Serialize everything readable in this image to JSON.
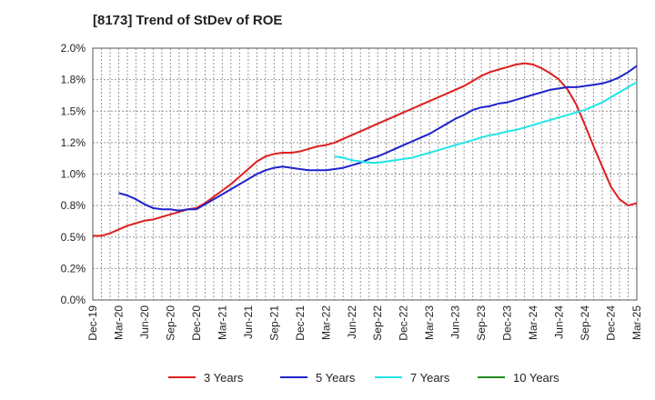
{
  "chart_data": {
    "type": "line",
    "title": "[8173]  Trend of StDev of ROE",
    "xlabel": "",
    "ylabel": "",
    "y_ticks": [
      "0.0%",
      "0.2%",
      "0.5%",
      "0.8%",
      "1.0%",
      "1.2%",
      "1.5%",
      "1.8%",
      "2.0%"
    ],
    "ylim": [
      0,
      2.0
    ],
    "x_ticks": [
      "Dec-19",
      "Mar-20",
      "Jun-20",
      "Sep-20",
      "Dec-20",
      "Mar-21",
      "Jun-21",
      "Sep-21",
      "Dec-21",
      "Mar-22",
      "Jun-22",
      "Sep-22",
      "Dec-22",
      "Mar-23",
      "Jun-23",
      "Sep-23",
      "Dec-23",
      "Mar-24",
      "Jun-24",
      "Sep-24",
      "Dec-24",
      "Mar-25"
    ],
    "grid": true,
    "legend_position": "bottom",
    "series": [
      {
        "name": "3 Years",
        "color": "#dd1f1f",
        "values": [
          0.51,
          0.51,
          0.53,
          0.56,
          0.59,
          0.61,
          0.63,
          0.64,
          0.66,
          0.68,
          0.7,
          0.72,
          0.73,
          0.77,
          0.82,
          0.87,
          0.92,
          0.98,
          1.04,
          1.1,
          1.14,
          1.16,
          1.17,
          1.17,
          1.18,
          1.2,
          1.22,
          1.23,
          1.25,
          1.28,
          1.31,
          1.34,
          1.37,
          1.4,
          1.43,
          1.46,
          1.49,
          1.52,
          1.55,
          1.58,
          1.61,
          1.64,
          1.67,
          1.7,
          1.74,
          1.78,
          1.81,
          1.83,
          1.85,
          1.87,
          1.88,
          1.87,
          1.84,
          1.8,
          1.75,
          1.67,
          1.55,
          1.39,
          1.22,
          1.06,
          0.9,
          0.8,
          0.75,
          0.77
        ]
      },
      {
        "name": "5 Years",
        "color": "#1f22cc",
        "values": [
          null,
          null,
          null,
          0.85,
          0.83,
          0.8,
          0.76,
          0.73,
          0.72,
          0.72,
          0.71,
          0.72,
          0.72,
          0.76,
          0.8,
          0.84,
          0.88,
          0.92,
          0.96,
          1.0,
          1.03,
          1.05,
          1.06,
          1.05,
          1.04,
          1.03,
          1.03,
          1.03,
          1.04,
          1.05,
          1.07,
          1.09,
          1.12,
          1.14,
          1.17,
          1.2,
          1.23,
          1.26,
          1.29,
          1.32,
          1.36,
          1.4,
          1.44,
          1.47,
          1.51,
          1.53,
          1.54,
          1.56,
          1.57,
          1.59,
          1.61,
          1.63,
          1.65,
          1.67,
          1.68,
          1.69,
          1.69,
          1.7,
          1.71,
          1.72,
          1.74,
          1.77,
          1.81,
          1.86
        ]
      },
      {
        "name": "7 Years",
        "color": "#22e6e6",
        "values": [
          null,
          null,
          null,
          null,
          null,
          null,
          null,
          null,
          null,
          null,
          null,
          null,
          null,
          null,
          null,
          null,
          null,
          null,
          null,
          null,
          null,
          null,
          null,
          null,
          null,
          null,
          null,
          null,
          1.14,
          1.13,
          1.11,
          1.1,
          1.09,
          1.09,
          1.1,
          1.11,
          1.12,
          1.13,
          1.15,
          1.17,
          1.19,
          1.21,
          1.23,
          1.25,
          1.27,
          1.29,
          1.31,
          1.32,
          1.34,
          1.35,
          1.37,
          1.39,
          1.41,
          1.43,
          1.45,
          1.47,
          1.49,
          1.51,
          1.54,
          1.57,
          1.61,
          1.65,
          1.69,
          1.73
        ]
      },
      {
        "name": "10 Years",
        "color": "#1f8c1f",
        "values": []
      }
    ]
  }
}
